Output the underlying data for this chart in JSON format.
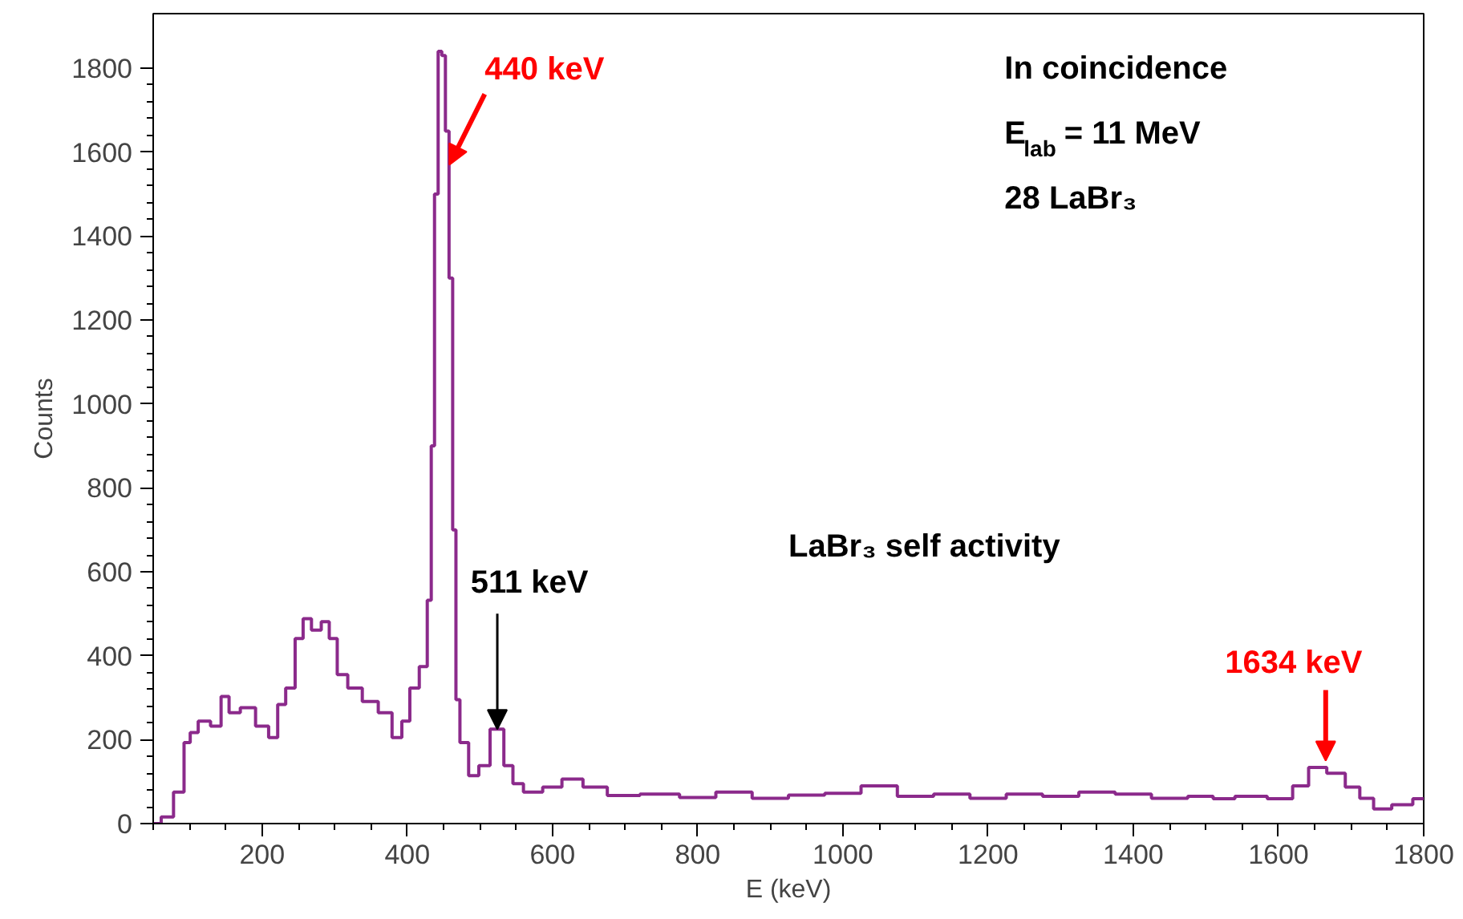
{
  "chart_data": {
    "type": "step",
    "xlabel": "E (keV)",
    "ylabel": "Counts",
    "x": [
      50,
      53,
      69,
      87,
      98,
      104,
      120,
      138,
      149,
      160,
      180,
      202,
      216,
      227,
      238,
      253,
      260,
      276,
      287,
      298,
      309,
      327,
      349,
      371,
      387,
      398,
      409,
      424,
      431,
      435,
      440,
      445,
      450,
      455,
      460,
      465,
      469,
      476,
      493,
      504,
      524,
      542,
      549,
      571,
      602,
      624,
      660,
      691,
      750,
      800,
      850,
      900,
      950,
      1000,
      1050,
      1100,
      1150,
      1200,
      1250,
      1300,
      1350,
      1400,
      1450,
      1500,
      1520,
      1560,
      1609,
      1630,
      1653,
      1680,
      1704,
      1720,
      1742,
      1770,
      1800
    ],
    "series": [
      {
        "color": "#8b2a8b",
        "values": [
          0,
          0,
          16,
          75,
          193,
          217,
          244,
          232,
          303,
          264,
          276,
          232,
          205,
          284,
          323,
          441,
          488,
          461,
          481,
          441,
          355,
          323,
          291,
          264,
          205,
          244,
          323,
          374,
          532,
          900,
          1500,
          1840,
          1830,
          1650,
          1300,
          700,
          295,
          193,
          114,
          138,
          225,
          138,
          95,
          75,
          87,
          106,
          87,
          67,
          70,
          62,
          75,
          60,
          68,
          72,
          90,
          65,
          70,
          60,
          70,
          65,
          75,
          70,
          60,
          65,
          59,
          65,
          59,
          90,
          134,
          120,
          87,
          60,
          35,
          45,
          59
        ]
      }
    ],
    "xlim": [
      50,
      1800
    ],
    "ylim": [
      0,
      1930
    ],
    "xticks": [
      200,
      400,
      600,
      800,
      1000,
      1200,
      1400,
      1600,
      1800
    ],
    "yticks": [
      0,
      200,
      400,
      600,
      800,
      1000,
      1200,
      1400,
      1600,
      1800
    ],
    "grid": false,
    "line_style": "solid",
    "marker": "none",
    "annotations": [
      {
        "text": "440 keV",
        "x": 458,
        "y": 1570
      },
      {
        "text": "511 keV",
        "x": 524,
        "y": 225
      },
      {
        "text": "1634 keV",
        "x": 1665,
        "y": 150
      },
      "In coincidence",
      "E$_{lab}$ = 11 MeV",
      "28 LaBr₃",
      "LaBr₃ self activity"
    ]
  }
}
